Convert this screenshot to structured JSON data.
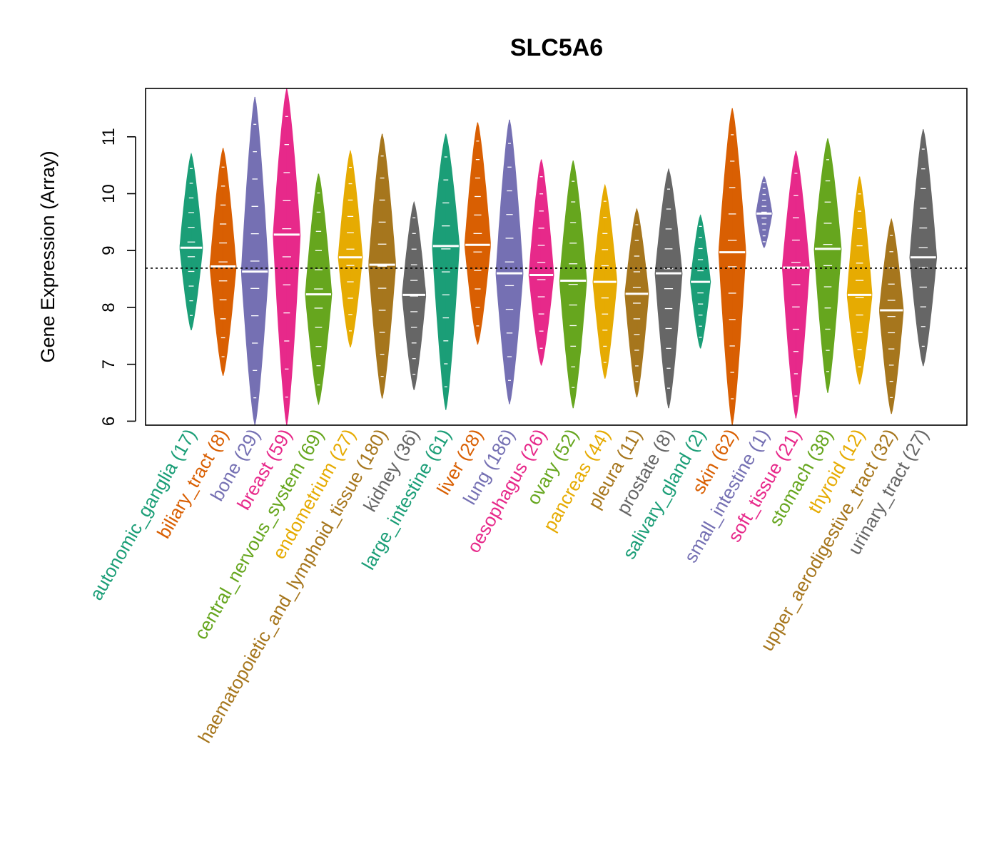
{
  "chart_data": {
    "type": "violin",
    "title": "SLC5A6",
    "ylabel": "Gene Expression (Array)",
    "xlabel": "",
    "ylim": [
      5.93,
      11.85
    ],
    "yticks": [
      6,
      7,
      8,
      9,
      10,
      11
    ],
    "reference_line": 8.69,
    "grid": false,
    "legend": "none",
    "categories": [
      {
        "label": "autonomic_ganglia (17)",
        "color": "#1B9E77",
        "min": 7.6,
        "max": 10.7,
        "median": 9.05
      },
      {
        "label": "biliary_tract (8)",
        "color": "#D95F02",
        "min": 6.8,
        "max": 10.8,
        "median": 8.72
      },
      {
        "label": "bone (29)",
        "color": "#7570B3",
        "min": 5.93,
        "max": 11.7,
        "median": 8.63
      },
      {
        "label": "breast (59)",
        "color": "#E7298A",
        "min": 5.93,
        "max": 11.85,
        "median": 9.28
      },
      {
        "label": "central_nervous_system (69)",
        "color": "#66A61E",
        "min": 6.3,
        "max": 10.35,
        "median": 8.23
      },
      {
        "label": "endometrium (27)",
        "color": "#E6AB02",
        "min": 7.3,
        "max": 10.75,
        "median": 8.88
      },
      {
        "label": "haematopoietic_and_lymphoid_tissue (180)",
        "color": "#A6761D",
        "min": 6.4,
        "max": 11.05,
        "median": 8.75
      },
      {
        "label": "kidney (36)",
        "color": "#666666",
        "min": 6.55,
        "max": 9.85,
        "median": 8.22
      },
      {
        "label": "large_intestine (61)",
        "color": "#1B9E77",
        "min": 6.2,
        "max": 11.05,
        "median": 9.08
      },
      {
        "label": "liver (28)",
        "color": "#D95F02",
        "min": 7.35,
        "max": 11.25,
        "median": 9.1
      },
      {
        "label": "lung (186)",
        "color": "#7570B3",
        "min": 6.3,
        "max": 11.3,
        "median": 8.6
      },
      {
        "label": "oesophagus (26)",
        "color": "#E7298A",
        "min": 6.98,
        "max": 10.6,
        "median": 8.57
      },
      {
        "label": "ovary (52)",
        "color": "#66A61E",
        "min": 6.23,
        "max": 10.58,
        "median": 8.47
      },
      {
        "label": "pancreas (44)",
        "color": "#E6AB02",
        "min": 6.75,
        "max": 10.15,
        "median": 8.45
      },
      {
        "label": "pleura (11)",
        "color": "#A6761D",
        "min": 6.42,
        "max": 9.73,
        "median": 8.24
      },
      {
        "label": "prostate (8)",
        "color": "#666666",
        "min": 6.23,
        "max": 10.43,
        "median": 8.6
      },
      {
        "label": "salivary_gland (2)",
        "color": "#1B9E77",
        "min": 7.28,
        "max": 9.62,
        "median": 8.45
      },
      {
        "label": "skin (62)",
        "color": "#D95F02",
        "min": 5.93,
        "max": 11.5,
        "median": 8.97
      },
      {
        "label": "small_intestine (1)",
        "color": "#7570B3",
        "min": 9.05,
        "max": 10.3,
        "median": 9.65
      },
      {
        "label": "soft_tissue (21)",
        "color": "#E7298A",
        "min": 6.05,
        "max": 10.75,
        "median": 8.7
      },
      {
        "label": "stomach (38)",
        "color": "#66A61E",
        "min": 6.5,
        "max": 10.97,
        "median": 9.03
      },
      {
        "label": "thyroid (12)",
        "color": "#E6AB02",
        "min": 6.65,
        "max": 10.3,
        "median": 8.22
      },
      {
        "label": "upper_aerodigestive_tract (32)",
        "color": "#A6761D",
        "min": 6.13,
        "max": 9.55,
        "median": 7.95
      },
      {
        "label": "urinary_tract (27)",
        "color": "#666666",
        "min": 6.97,
        "max": 11.13,
        "median": 8.88
      }
    ]
  }
}
